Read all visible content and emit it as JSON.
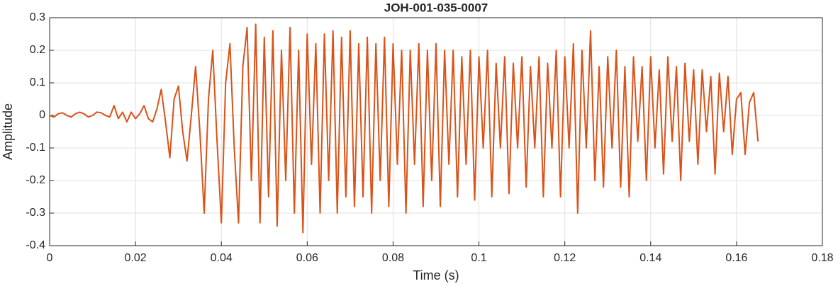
{
  "chart_data": {
    "type": "line",
    "title": "JOH-001-035-0007",
    "xlabel": "Time (s)",
    "ylabel": "Amplitude",
    "x": [
      0,
      0.001,
      0.002,
      0.003,
      0.004,
      0.005,
      0.006,
      0.007,
      0.008,
      0.009,
      0.01,
      0.011,
      0.012,
      0.013,
      0.014,
      0.015,
      0.016,
      0.017,
      0.018,
      0.019,
      0.02,
      0.021,
      0.022,
      0.023,
      0.024,
      0.025,
      0.026,
      0.027,
      0.028,
      0.029,
      0.03,
      0.031,
      0.032,
      0.033,
      0.034,
      0.035,
      0.036,
      0.037,
      0.038,
      0.039,
      0.04,
      0.041,
      0.042,
      0.043,
      0.044,
      0.045,
      0.046,
      0.047,
      0.048,
      0.049,
      0.05,
      0.051,
      0.052,
      0.053,
      0.054,
      0.055,
      0.056,
      0.057,
      0.058,
      0.059,
      0.06,
      0.061,
      0.062,
      0.063,
      0.064,
      0.065,
      0.066,
      0.067,
      0.068,
      0.069,
      0.07,
      0.071,
      0.072,
      0.073,
      0.074,
      0.075,
      0.076,
      0.077,
      0.078,
      0.079,
      0.08,
      0.081,
      0.082,
      0.083,
      0.084,
      0.085,
      0.086,
      0.087,
      0.088,
      0.089,
      0.09,
      0.091,
      0.092,
      0.093,
      0.094,
      0.095,
      0.096,
      0.097,
      0.098,
      0.099,
      0.1,
      0.101,
      0.102,
      0.103,
      0.104,
      0.105,
      0.106,
      0.107,
      0.108,
      0.109,
      0.11,
      0.111,
      0.112,
      0.113,
      0.114,
      0.115,
      0.116,
      0.117,
      0.118,
      0.119,
      0.12,
      0.121,
      0.122,
      0.123,
      0.124,
      0.125,
      0.126,
      0.127,
      0.128,
      0.129,
      0.13,
      0.131,
      0.132,
      0.133,
      0.134,
      0.135,
      0.136,
      0.137,
      0.138,
      0.139,
      0.14,
      0.141,
      0.142,
      0.143,
      0.144,
      0.145,
      0.146,
      0.147,
      0.148,
      0.149,
      0.15,
      0.151,
      0.152,
      0.153,
      0.154,
      0.155,
      0.156,
      0.157,
      0.158,
      0.159,
      0.16,
      0.161,
      0.162,
      0.163,
      0.164,
      0.165
    ],
    "series": [
      {
        "color": "#d95319",
        "values": [
          0,
          -0.005,
          0.005,
          0.008,
          0,
          -0.005,
          0.005,
          0.01,
          0.005,
          -0.005,
          0,
          0.01,
          0.008,
          0,
          -0.005,
          0.03,
          -0.01,
          0.01,
          -0.02,
          0.01,
          -0.01,
          0.005,
          0.03,
          -0.01,
          -0.02,
          0.02,
          0.08,
          -0.02,
          -0.13,
          0.05,
          0.09,
          -0.05,
          -0.14,
          0,
          0.15,
          -0.05,
          -0.3,
          0.05,
          0.2,
          -0.08,
          -0.33,
          0.1,
          0.22,
          -0.1,
          -0.33,
          0.15,
          0.27,
          -0.2,
          0.28,
          -0.33,
          0.24,
          -0.25,
          0.26,
          -0.34,
          0.2,
          -0.2,
          0.27,
          -0.3,
          0.2,
          -0.36,
          0.25,
          -0.15,
          0.22,
          -0.3,
          0.25,
          -0.2,
          0.26,
          -0.3,
          0.24,
          -0.25,
          0.26,
          -0.28,
          0.22,
          -0.25,
          0.24,
          -0.3,
          0.22,
          -0.2,
          0.24,
          -0.28,
          0.22,
          -0.15,
          0.2,
          -0.3,
          0.2,
          -0.15,
          0.22,
          -0.28,
          0.2,
          -0.2,
          0.22,
          -0.28,
          0.2,
          -0.15,
          0.2,
          -0.25,
          0.18,
          -0.15,
          0.2,
          -0.26,
          0.18,
          -0.1,
          0.2,
          -0.25,
          0.16,
          -0.1,
          0.18,
          -0.24,
          0.16,
          -0.1,
          0.18,
          -0.22,
          0.15,
          -0.1,
          0.18,
          -0.25,
          0.16,
          -0.1,
          0.2,
          -0.25,
          0.18,
          -0.1,
          0.22,
          -0.3,
          0.2,
          -0.1,
          0.26,
          -0.2,
          0.15,
          -0.22,
          0.18,
          -0.1,
          0.2,
          -0.22,
          0.15,
          -0.25,
          0.18,
          -0.08,
          0.15,
          -0.2,
          0.18,
          -0.1,
          0.14,
          -0.18,
          0.18,
          -0.08,
          0.15,
          -0.2,
          0.16,
          -0.08,
          0.14,
          -0.15,
          0.14,
          -0.05,
          0.12,
          -0.18,
          0.13,
          -0.05,
          0.12,
          -0.12,
          0.05,
          0.07,
          -0.12,
          0.04,
          0.07,
          -0.08
        ]
      }
    ],
    "xlim": [
      0,
      0.18
    ],
    "xticks": [
      0,
      0.02,
      0.04,
      0.06,
      0.08,
      0.1,
      0.12,
      0.14,
      0.16,
      0.18
    ],
    "ylim": [
      -0.4,
      0.3
    ],
    "yticks": [
      -0.4,
      -0.3,
      -0.2,
      -0.1,
      0,
      0.1,
      0.2,
      0.3
    ],
    "grid": true
  }
}
